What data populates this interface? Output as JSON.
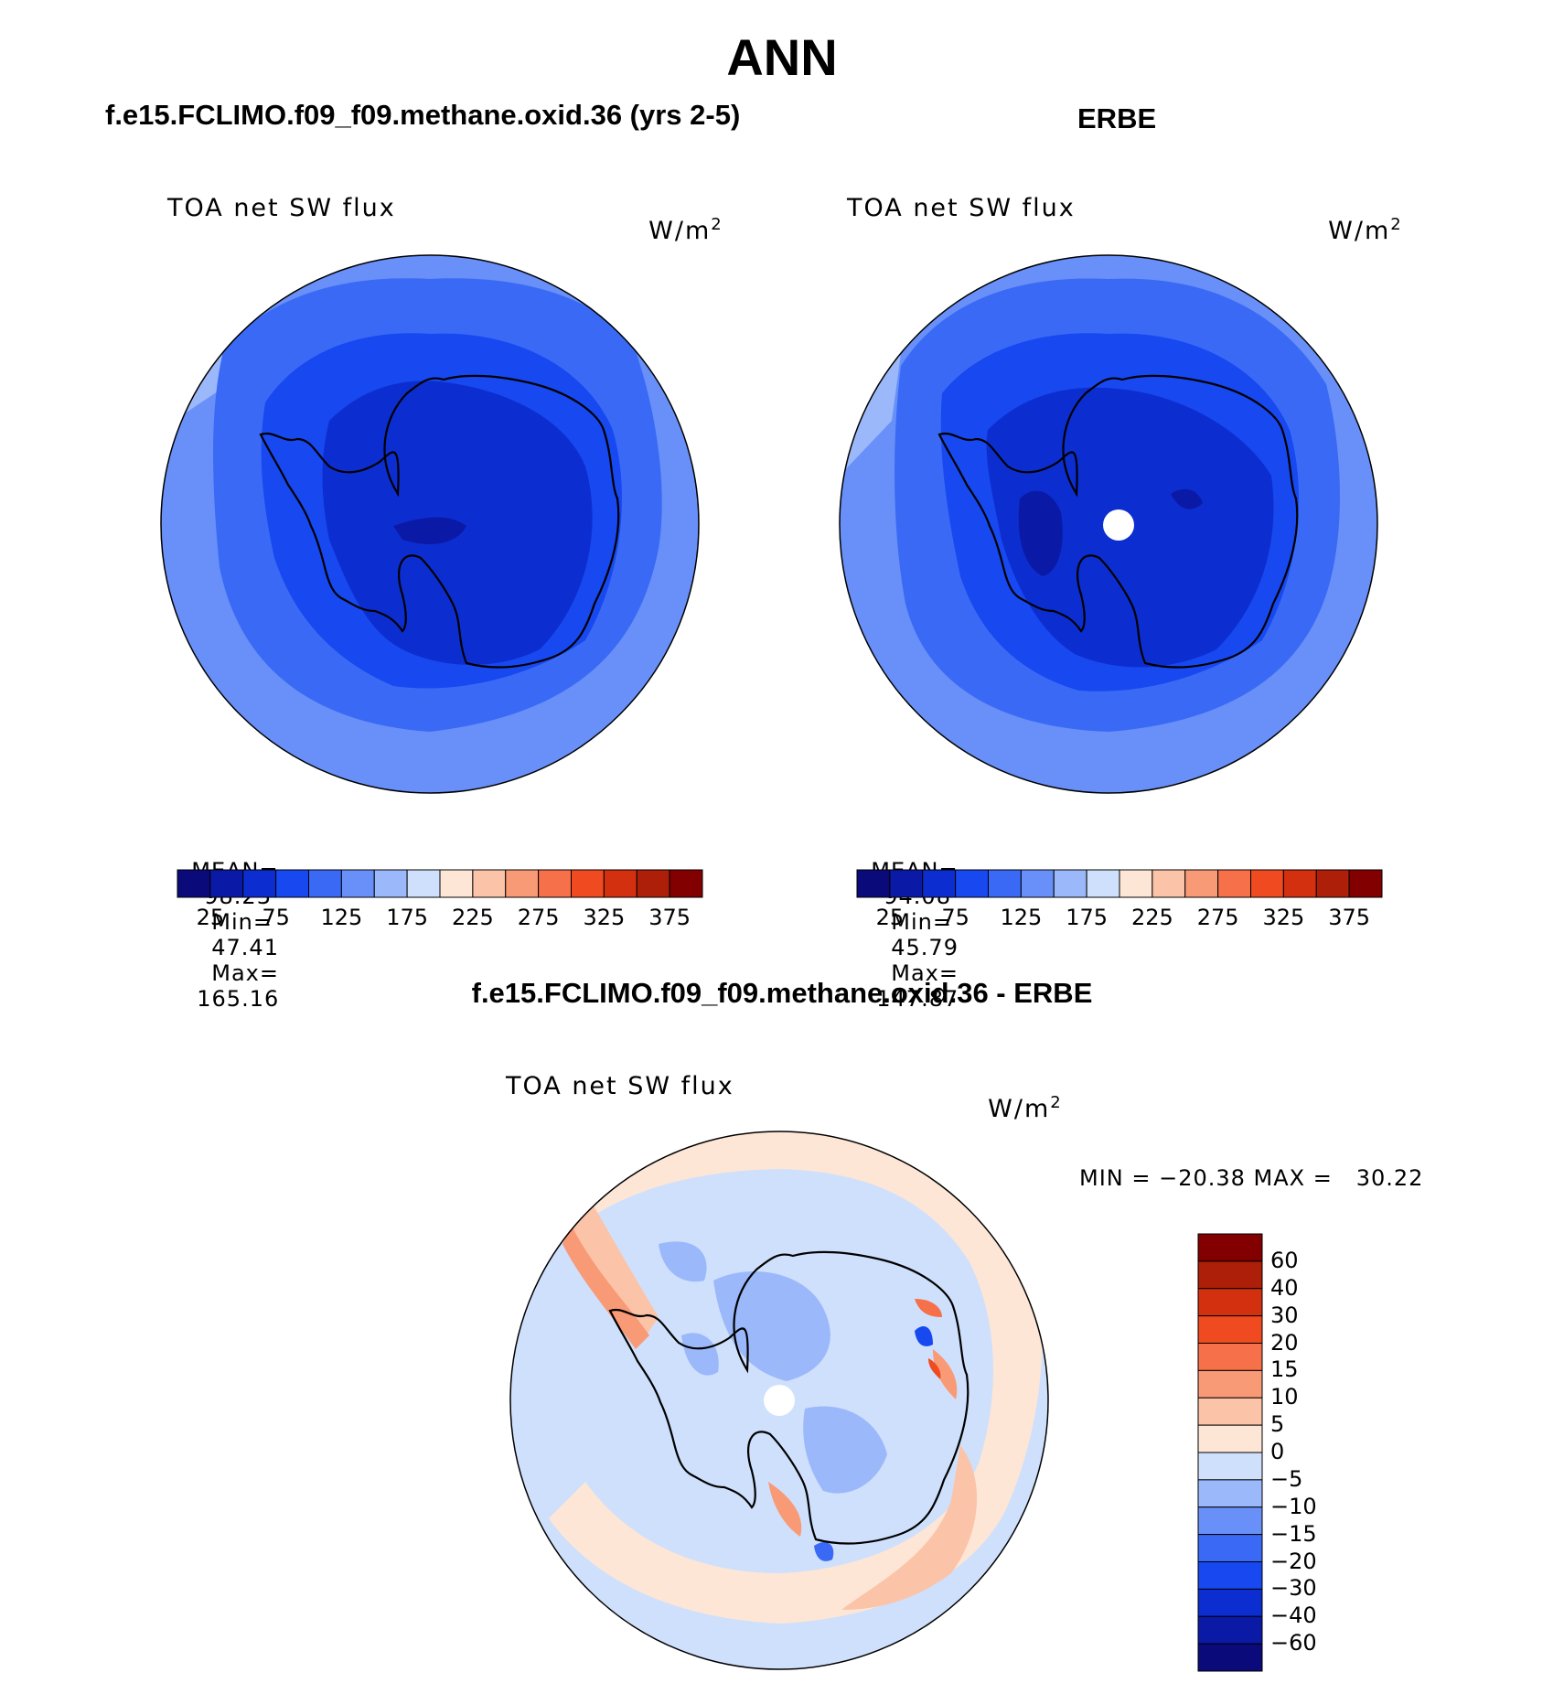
{
  "figure": {
    "season": "ANN",
    "left_panel_title": "f.e15.FCLIMO.f09_f09.methane.oxid.36 (yrs 2-5)",
    "right_panel_title": "ERBE",
    "diff_panel_title": "f.e15.FCLIMO.f09_f09.methane.oxid.36 - ERBE"
  },
  "panels": [
    {
      "name": "model",
      "variable": "TOA net SW flux",
      "units": "W/m",
      "units_exp": "2",
      "mean_label": "MEAN=",
      "mean": "98.23",
      "min_label": "Min=",
      "min": "47.41",
      "max_label": "Max=",
      "max": "165.16"
    },
    {
      "name": "obs",
      "variable": "TOA net SW flux",
      "units": "W/m",
      "units_exp": "2",
      "mean_label": "MEAN=",
      "mean": "94.08",
      "min_label": "Min=",
      "min": "45.79",
      "max_label": "Max=",
      "max": "147.87"
    }
  ],
  "diff_panel": {
    "variable": "TOA net SW flux",
    "units": "W/m",
    "units_exp": "2",
    "minmax_text": "MIN = −20.38 MAX =   30.22"
  },
  "colorbar_main": {
    "colors": [
      "#0a0a7a",
      "#0a1aa6",
      "#0c2ed0",
      "#1848f0",
      "#3a6af5",
      "#6890f8",
      "#9bb8fa",
      "#cfe0fc",
      "#fde6d6",
      "#fbc4a8",
      "#f99a76",
      "#f6704a",
      "#f04a20",
      "#d33010",
      "#ad1f08",
      "#830000"
    ],
    "tick_labels": [
      "25",
      "75",
      "125",
      "175",
      "225",
      "275",
      "325",
      "375"
    ]
  },
  "colorbar_diff": {
    "colors": [
      "#830000",
      "#ad1f08",
      "#d33010",
      "#f04a20",
      "#f6704a",
      "#f99a76",
      "#fbc4a8",
      "#fde6d6",
      "#cfe0fc",
      "#9bb8fa",
      "#6890f8",
      "#3a6af5",
      "#1848f0",
      "#0c2ed0",
      "#0a1aa6",
      "#0a0a7a"
    ],
    "tick_labels": [
      "60",
      "40",
      "30",
      "20",
      "15",
      "10",
      "5",
      "0",
      "−5",
      "−10",
      "−15",
      "−20",
      "−30",
      "−40",
      "−60"
    ]
  },
  "colors": {
    "contour_light": "#cfe0fc",
    "contour_mid": "#9bb8fa",
    "contour_med": "#6890f8",
    "contour_dark": "#3a6af5",
    "contour_darker": "#1848f0",
    "contour_darkest": "#0c2ed0",
    "diff_pos1": "#fde6d6",
    "diff_pos2": "#fbc4a8",
    "diff_pos3": "#f99a76",
    "diff_pos4": "#f6704a",
    "diff_neg1": "#cfe0fc",
    "diff_neg2": "#9bb8fa",
    "diff_neg3": "#6890f8"
  }
}
